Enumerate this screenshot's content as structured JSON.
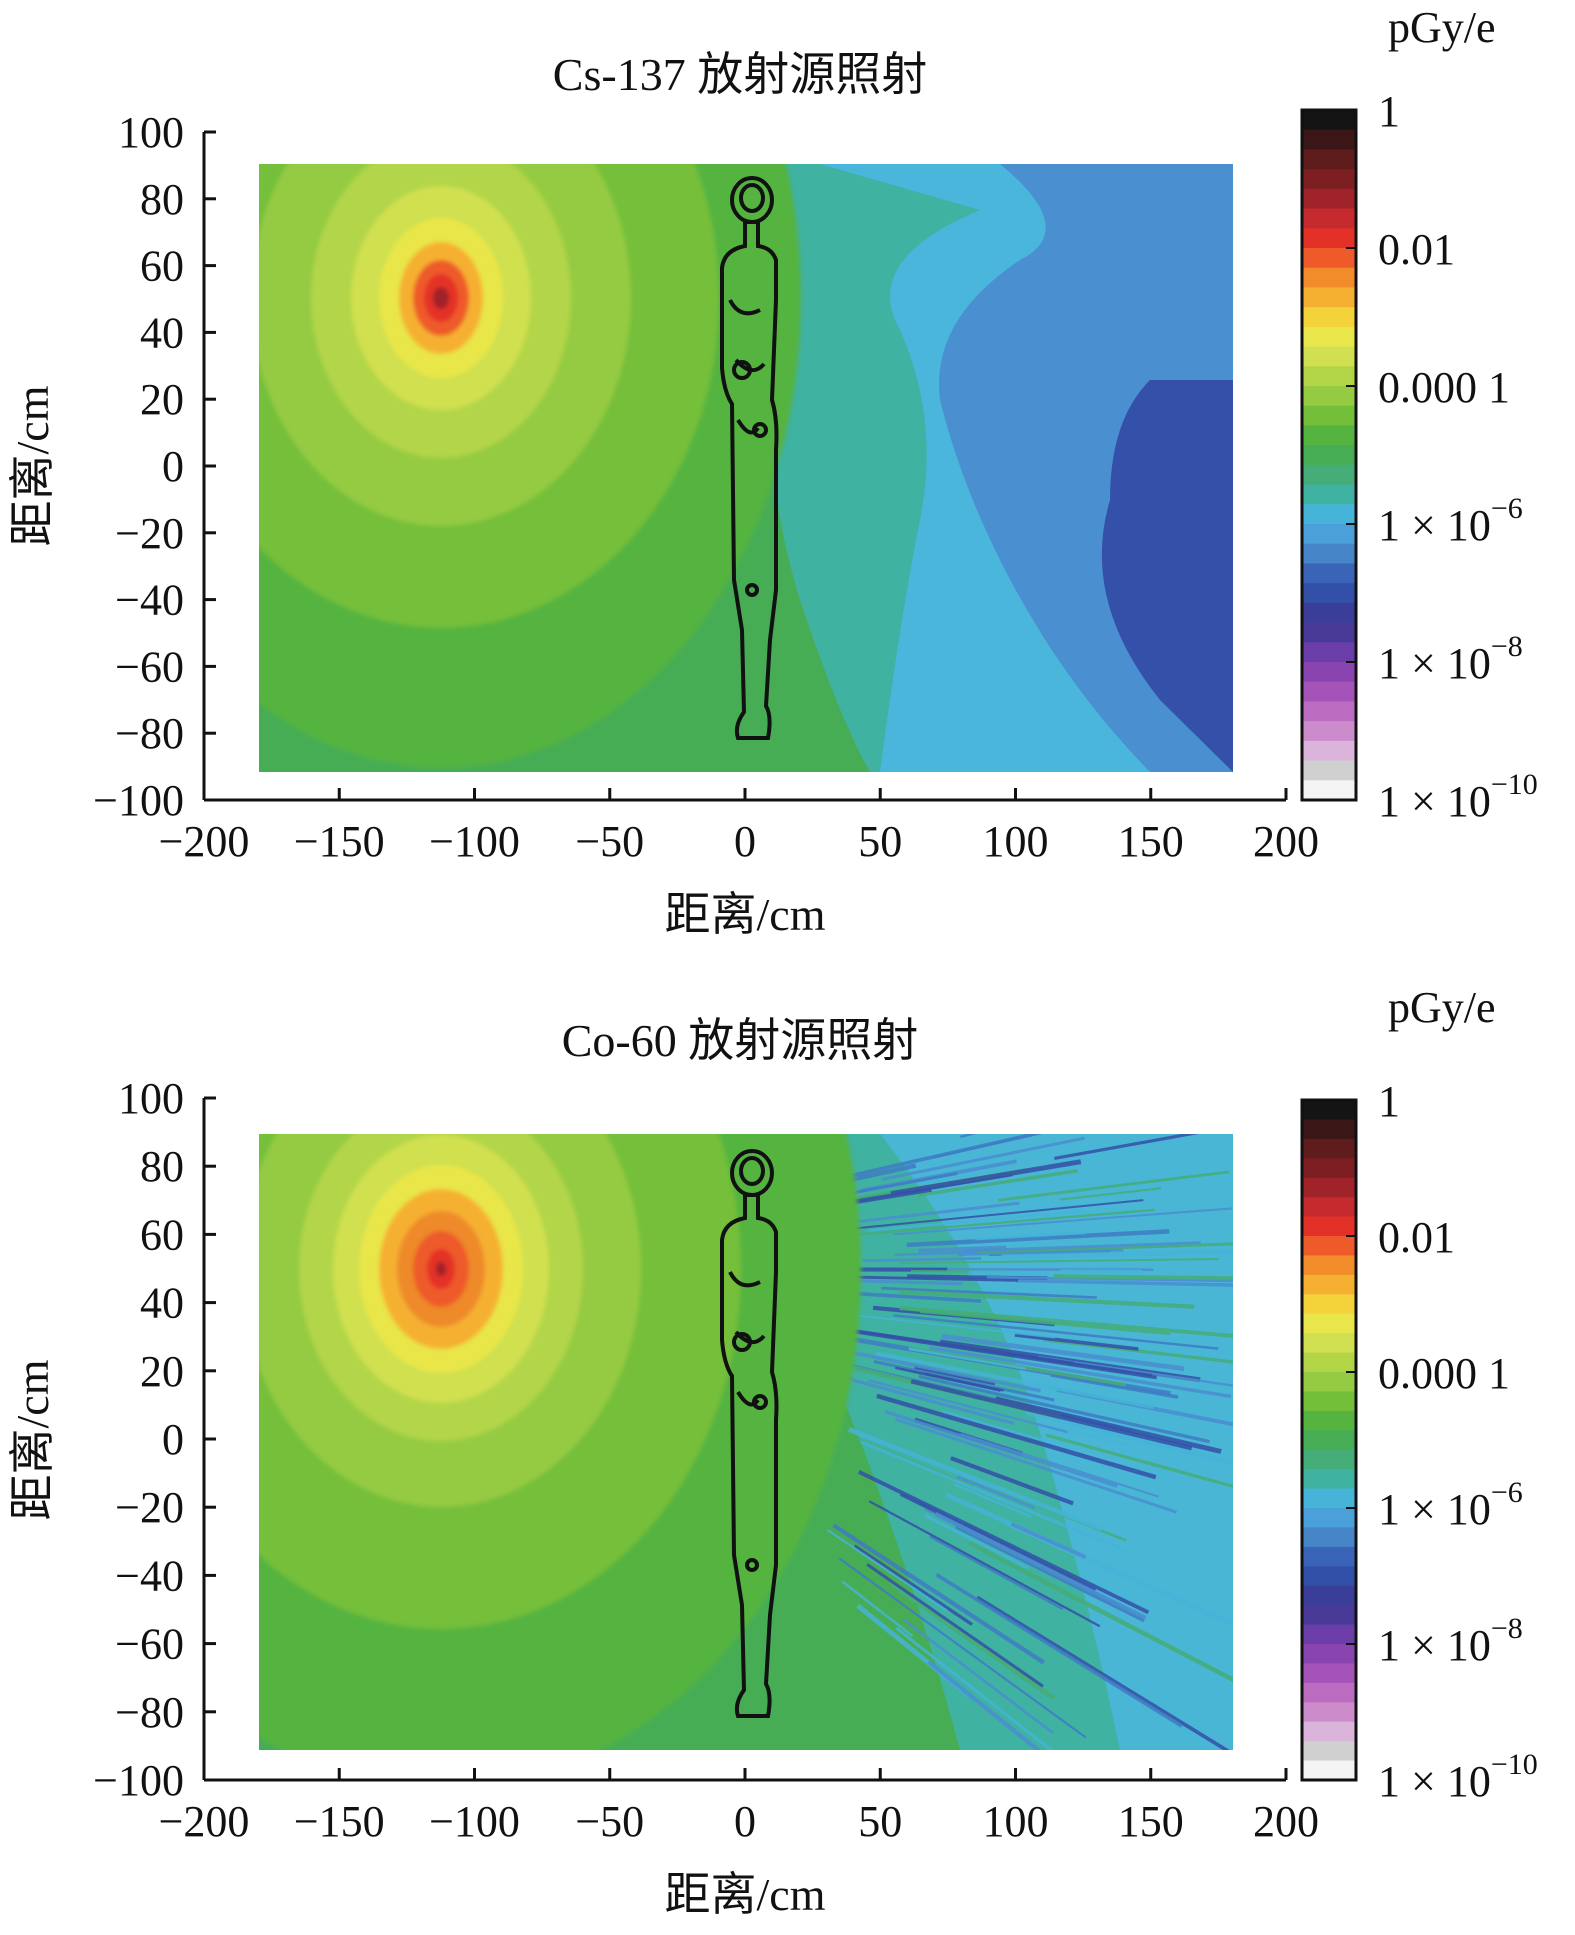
{
  "chart_data": [
    {
      "type": "heatmap",
      "title": "Cs-137 放射源照射",
      "xlabel": "距离/cm",
      "ylabel": "距离/cm",
      "xlim": [
        -200,
        200
      ],
      "ylim": [
        -100,
        100
      ],
      "x_ticks": [
        -200,
        -150,
        -100,
        -50,
        0,
        50,
        100,
        150,
        200
      ],
      "y_ticks": [
        100,
        80,
        60,
        40,
        20,
        0,
        -20,
        -40,
        -60,
        -80,
        -100
      ],
      "x_tick_labels": [
        "−200",
        "−150",
        "−100",
        "−50",
        "0",
        "50",
        "100",
        "150",
        "200"
      ],
      "y_tick_labels": [
        "100",
        "80",
        "60",
        "40",
        "20",
        "0",
        "−20",
        "−40",
        "−60",
        "−80",
        "−100"
      ],
      "data_extent": {
        "x": [
          -180,
          180
        ],
        "y": [
          -90,
          90
        ]
      },
      "source_position": [
        -112,
        50
      ],
      "phantom_x": 3,
      "colorbar": {
        "unit": "pGy/e",
        "scale": "log",
        "tick_labels": [
          "1",
          "0.01",
          "0.000 1",
          "1 × 10",
          "1 × 10",
          "1 × 10"
        ],
        "tick_exponents": [
          "",
          "",
          "",
          "−6",
          "−8",
          "−10"
        ]
      }
    },
    {
      "type": "heatmap",
      "title": "Co-60 放射源照射",
      "xlabel": "距离/cm",
      "ylabel": "距离/cm",
      "xlim": [
        -200,
        200
      ],
      "ylim": [
        -100,
        100
      ],
      "x_ticks": [
        -200,
        -150,
        -100,
        -50,
        0,
        50,
        100,
        150,
        200
      ],
      "y_ticks": [
        100,
        80,
        60,
        40,
        20,
        0,
        -20,
        -40,
        -60,
        -80,
        -100
      ],
      "x_tick_labels": [
        "−200",
        "−150",
        "−100",
        "−50",
        "0",
        "50",
        "100",
        "150",
        "200"
      ],
      "y_tick_labels": [
        "100",
        "80",
        "60",
        "40",
        "20",
        "0",
        "−20",
        "−40",
        "−60",
        "−80",
        "−100"
      ],
      "data_extent": {
        "x": [
          -180,
          180
        ],
        "y": [
          -90,
          90
        ]
      },
      "source_position": [
        -112,
        50
      ],
      "phantom_x": 3,
      "colorbar": {
        "unit": "pGy/e",
        "scale": "log",
        "tick_labels": [
          "1",
          "0.01",
          "0.000 1",
          "1 × 10",
          "1 × 10",
          "1 × 10"
        ],
        "tick_exponents": [
          "",
          "",
          "",
          "−6",
          "−8",
          "−10"
        ]
      }
    }
  ],
  "colors": {
    "colorbar_steps": [
      "#141414",
      "#3a1616",
      "#5e1c1c",
      "#7d1e22",
      "#a0232a",
      "#c42a2e",
      "#e43128",
      "#ee5a2a",
      "#f28c2a",
      "#f5b032",
      "#f3d23a",
      "#e8e64a",
      "#d0e050",
      "#b2d548",
      "#94cb42",
      "#74bf3a",
      "#55b340",
      "#46ad55",
      "#45ad78",
      "#3fb2a2",
      "#46b4d8",
      "#4aa0d8",
      "#4585c8",
      "#3a64b8",
      "#3350a8",
      "#3a3e98",
      "#4a3a98",
      "#6a3da8",
      "#8a44b0",
      "#a454b8",
      "#bb6cc0",
      "#cc8ccc",
      "#dab4da",
      "#d0d0d0",
      "#f4f4f4"
    ]
  }
}
